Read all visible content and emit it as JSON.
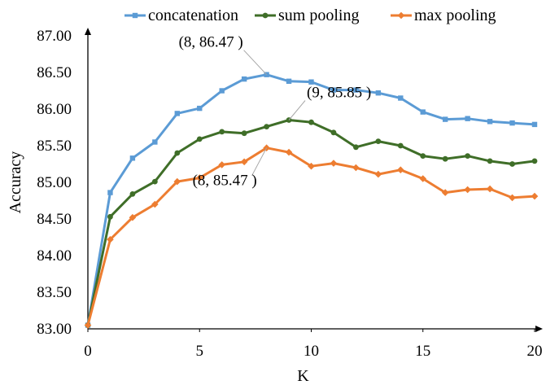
{
  "chart_data": {
    "type": "line",
    "xlabel": "K",
    "ylabel": "Accuracy",
    "xlim": [
      0,
      20
    ],
    "ylim": [
      83.0,
      87.0
    ],
    "xticks": [
      "0",
      "5",
      "10",
      "15",
      "20"
    ],
    "yticks": [
      "83.00",
      "83.50",
      "84.00",
      "84.50",
      "85.00",
      "85.50",
      "86.00",
      "86.50",
      "87.00"
    ],
    "grid": false,
    "legend_position": "top",
    "x": [
      0,
      1,
      2,
      3,
      4,
      5,
      6,
      7,
      8,
      9,
      10,
      11,
      12,
      13,
      14,
      15,
      16,
      17,
      18,
      19,
      20
    ],
    "series": [
      {
        "name": "concatenation",
        "color": "#5b9bd5",
        "marker": "square",
        "values": [
          83.05,
          84.86,
          85.33,
          85.55,
          85.94,
          86.01,
          86.25,
          86.41,
          86.47,
          86.38,
          86.37,
          86.26,
          86.26,
          86.22,
          86.15,
          85.96,
          85.86,
          85.87,
          85.83,
          85.81,
          85.79
        ]
      },
      {
        "name": "sum pooling",
        "color": "#3f6e28",
        "marker": "circle",
        "values": [
          83.05,
          84.53,
          84.84,
          85.01,
          85.4,
          85.59,
          85.69,
          85.67,
          85.76,
          85.85,
          85.82,
          85.68,
          85.48,
          85.56,
          85.5,
          85.36,
          85.32,
          85.36,
          85.29,
          85.25,
          85.29
        ]
      },
      {
        "name": "max pooling",
        "color": "#ed7d31",
        "marker": "diamond",
        "values": [
          83.05,
          84.22,
          84.52,
          84.7,
          85.01,
          85.06,
          85.24,
          85.28,
          85.47,
          85.41,
          85.22,
          85.26,
          85.2,
          85.11,
          85.17,
          85.05,
          84.86,
          84.9,
          84.91,
          84.79,
          84.81
        ]
      }
    ],
    "annotations": [
      {
        "text": "(8, 86.47 )",
        "series": 0,
        "x": 8
      },
      {
        "text": "(9, 85.85 )",
        "series": 1,
        "x": 9
      },
      {
        "text": "(8, 85.47 )",
        "series": 2,
        "x": 8
      }
    ]
  }
}
